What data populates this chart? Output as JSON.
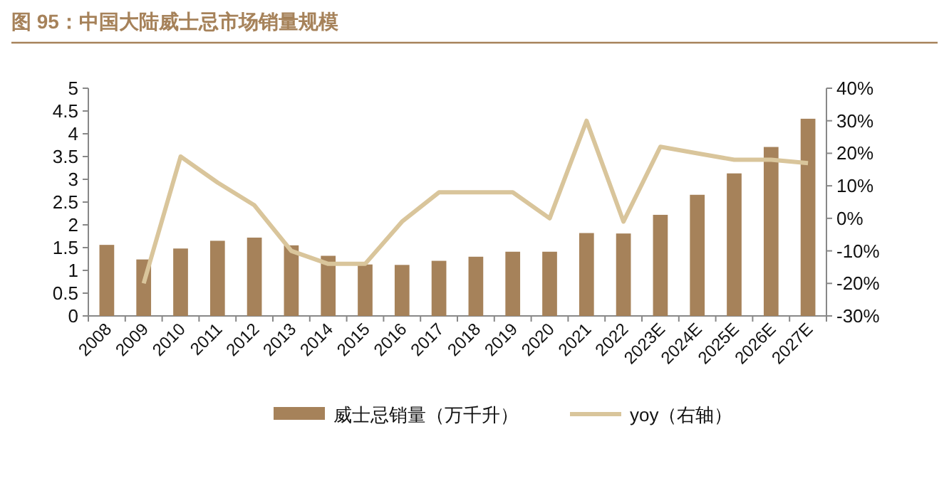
{
  "chart_data": {
    "type": "bar",
    "title": "图 95：中国大陆威士忌市场销量规模",
    "categories": [
      "2008",
      "2009",
      "2010",
      "2011",
      "2012",
      "2013",
      "2014",
      "2015",
      "2016",
      "2017",
      "2018",
      "2019",
      "2020",
      "2021",
      "2022",
      "2023E",
      "2024E",
      "2025E",
      "2026E",
      "2027E"
    ],
    "series": [
      {
        "name": "威士忌销量（万千升）",
        "color": "#a6825a",
        "values": [
          1.56,
          1.24,
          1.48,
          1.65,
          1.72,
          1.55,
          1.32,
          1.13,
          1.12,
          1.21,
          1.3,
          1.41,
          1.41,
          1.82,
          1.81,
          2.22,
          2.66,
          3.13,
          3.71,
          4.33
        ]
      },
      {
        "name": "yoy（右轴）",
        "type": "line",
        "axis": "y2",
        "color": "#d9c59b",
        "values": [
          null,
          -20,
          19,
          11,
          4,
          -10,
          -14,
          -14,
          -1,
          8,
          8,
          8,
          0,
          30,
          -1,
          22,
          20,
          18,
          18,
          17
        ]
      }
    ],
    "ylim": [
      0,
      5
    ],
    "yticks": [
      0,
      0.5,
      1,
      1.5,
      2,
      2.5,
      3,
      3.5,
      4,
      4.5,
      5
    ],
    "y2lim": [
      -30,
      40
    ],
    "y2ticks": [
      {
        "value": -30,
        "label": "-30%"
      },
      {
        "value": -20,
        "label": "-20%"
      },
      {
        "value": -10,
        "label": "-10%"
      },
      {
        "value": 0,
        "label": "0%"
      },
      {
        "value": 10,
        "label": "10%"
      },
      {
        "value": 20,
        "label": "20%"
      },
      {
        "value": 30,
        "label": "30%"
      },
      {
        "value": 40,
        "label": "40%"
      }
    ],
    "legend": "bottom"
  }
}
